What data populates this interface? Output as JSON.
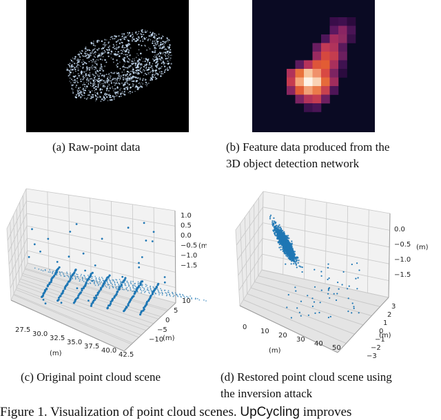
{
  "panels": {
    "a": {
      "caption": "(a) Raw-point data"
    },
    "b": {
      "caption_line1": "(b) Feature data produced from the",
      "caption_line2": "3D object detection network"
    },
    "c": {
      "caption": "(c) Original point cloud scene",
      "z_ticks": [
        "1.0",
        "0.5",
        "0.0",
        "−0.5",
        "−1.0",
        "−1.5"
      ],
      "z_unit": "(m)",
      "y_ticks": [
        "10",
        "5",
        "0",
        "−5",
        "−10"
      ],
      "y_unit": "(m)",
      "x_ticks": [
        "27.5",
        "30.0",
        "32.5",
        "35.0",
        "37.5",
        "40.0",
        "42.5"
      ],
      "x_unit": "(m)"
    },
    "d": {
      "caption_line1": "(d) Restored point cloud scene using",
      "caption_line2": "the inversion attack",
      "z_ticks": [
        "0.0",
        "−0.5",
        "−1.0",
        "−1.5"
      ],
      "z_unit": "(m)",
      "y_ticks": [
        "3",
        "2",
        "1",
        "0",
        "−1",
        "−2",
        "−3"
      ],
      "y_unit": "(m)",
      "x_ticks": [
        "0",
        "10",
        "20",
        "30",
        "40",
        "50"
      ],
      "x_unit": "(m)"
    }
  },
  "figure_caption": {
    "prefix": "Figure 1. Visualization of point cloud scenes.",
    "name": "UpCycling",
    "suffix": "improves"
  },
  "colors": {
    "points": "#1f77b4",
    "heat_background": "#0a0a23"
  }
}
